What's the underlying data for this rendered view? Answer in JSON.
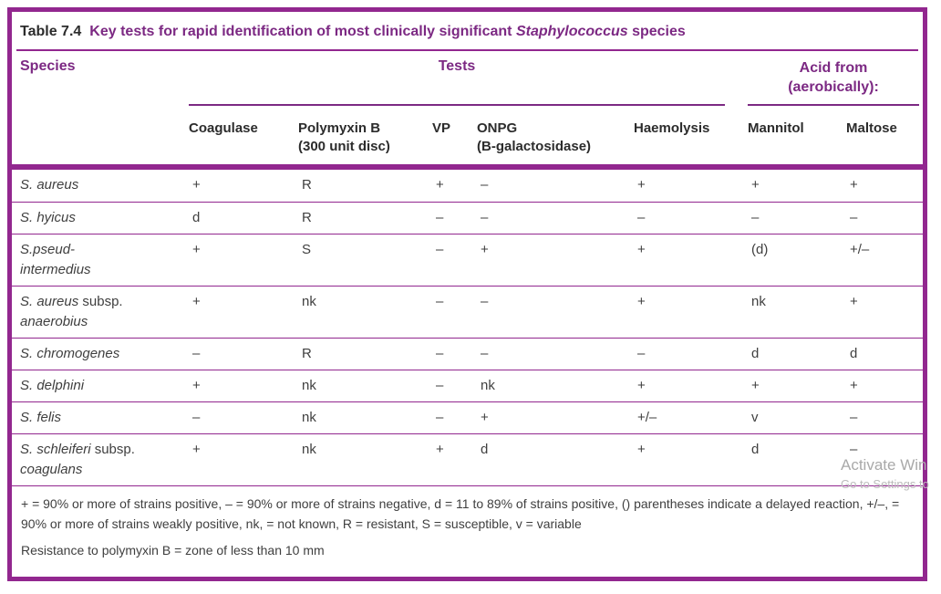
{
  "title": {
    "label": "Table 7.4",
    "text": "Key tests for rapid identification of most clinically significant ",
    "italic_word": "Staphylococcus",
    "text_after": " species"
  },
  "header": {
    "species_label": "Species",
    "tests_label": "Tests",
    "acid_label": "Acid from\n(aerobically):",
    "columns": [
      "Coagulase",
      "Polymyxin B\n(300 unit disc)",
      "VP",
      "ONPG\n(B-galactosidase)",
      "Haemolysis",
      "Mannitol",
      "Maltose"
    ]
  },
  "rows": [
    {
      "species_lines": [
        [
          {
            "t": "S. aureus",
            "i": true
          }
        ]
      ],
      "values": [
        "+",
        "R",
        "+",
        "–",
        "+",
        "+",
        "+"
      ]
    },
    {
      "species_lines": [
        [
          {
            "t": "S. hyicus",
            "i": true
          }
        ]
      ],
      "values": [
        "d",
        "R",
        "–",
        "–",
        "–",
        "–",
        "–"
      ]
    },
    {
      "species_lines": [
        [
          {
            "t": "S.pseud-",
            "i": true
          }
        ],
        [
          {
            "t": "intermedius",
            "i": true
          }
        ]
      ],
      "values": [
        "+",
        "S",
        "–",
        "+",
        "+",
        "(d)",
        "+/–"
      ]
    },
    {
      "species_lines": [
        [
          {
            "t": "S. aureus",
            "i": true
          },
          {
            "t": " subsp.",
            "i": false
          }
        ],
        [
          {
            "t": "anaerobius",
            "i": true
          }
        ]
      ],
      "values": [
        "+",
        "nk",
        "–",
        "–",
        "+",
        "nk",
        "+"
      ]
    },
    {
      "species_lines": [
        [
          {
            "t": "S. chromogenes",
            "i": true
          }
        ]
      ],
      "values": [
        "–",
        "R",
        "–",
        "–",
        "–",
        "d",
        "d"
      ]
    },
    {
      "species_lines": [
        [
          {
            "t": "S. delphini",
            "i": true
          }
        ]
      ],
      "values": [
        "+",
        "nk",
        "–",
        "nk",
        "+",
        "+",
        "+"
      ]
    },
    {
      "species_lines": [
        [
          {
            "t": "S. felis",
            "i": true
          }
        ]
      ],
      "values": [
        "–",
        "nk",
        "–",
        "+",
        "+/–",
        "v",
        "–"
      ]
    },
    {
      "species_lines": [
        [
          {
            "t": "S. schleiferi",
            "i": true
          },
          {
            "t": " subsp.",
            "i": false
          }
        ],
        [
          {
            "t": "coagulans",
            "i": true
          }
        ]
      ],
      "values": [
        "+",
        "nk",
        "+",
        "d",
        "+",
        "d",
        "–"
      ]
    }
  ],
  "footnotes": [
    "+ = 90% or more of strains positive, – = 90% or more of strains negative, d = 11 to 89% of strains positive, () parentheses indicate a delayed reaction, +/–, = 90% or more of strains weakly positive, nk, = not known, R = resistant, S = susceptible, v = variable",
    "Resistance to polymyxin B = zone of less than 10 mm"
  ],
  "watermark": {
    "line1": "Activate Win",
    "line2": "Go to Settings to"
  },
  "colors": {
    "purple": "#92278f",
    "purple-dark": "#7c2983",
    "ink": "#2c2c2c",
    "body-ink": "#3f3f3f",
    "wm1": "#a9a9a9",
    "wm2": "#bcbcbc"
  }
}
